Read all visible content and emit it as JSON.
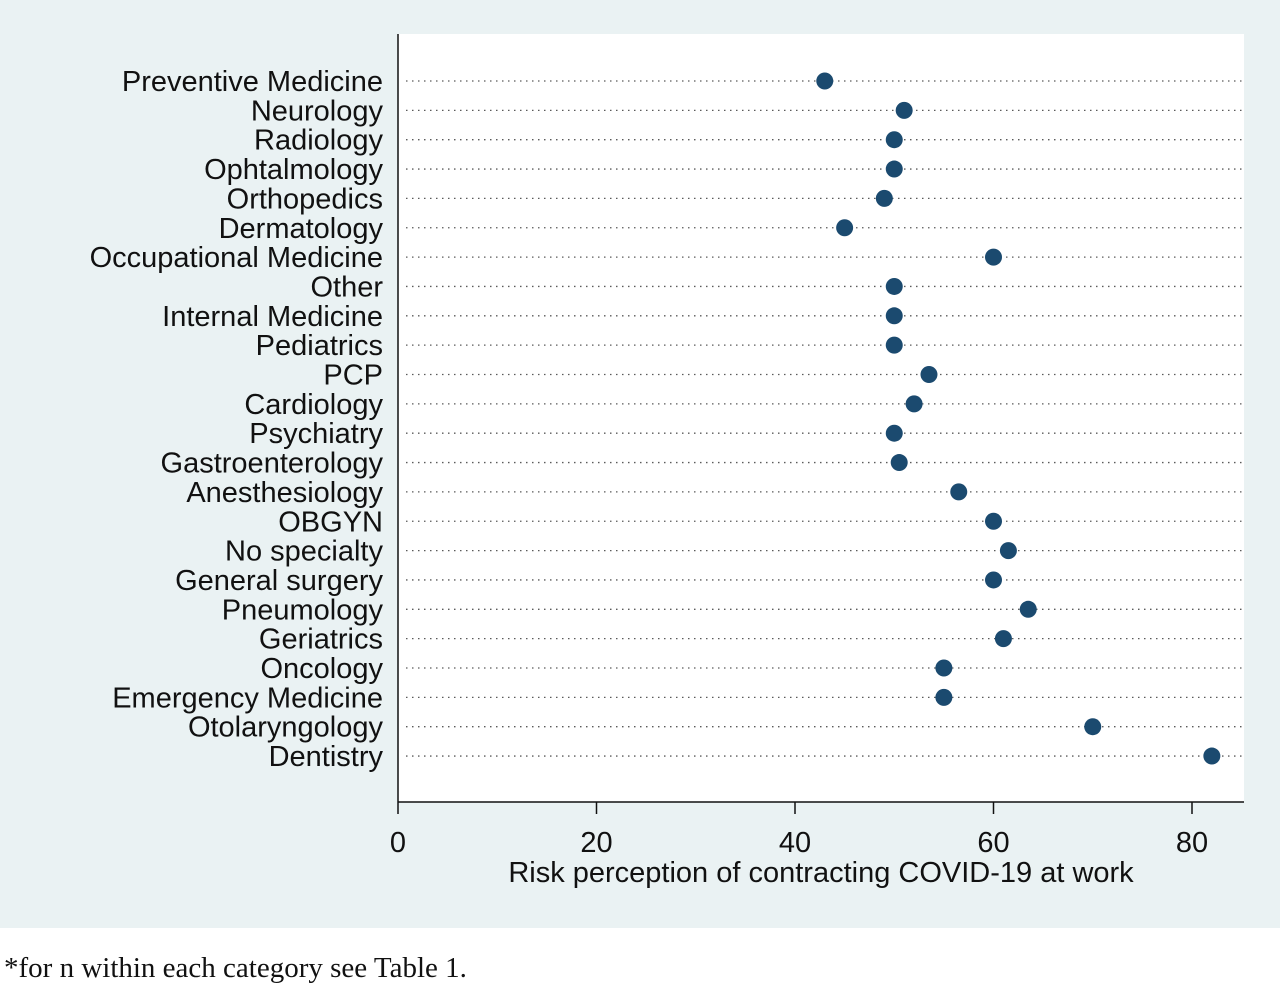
{
  "chart_data": {
    "type": "scatter",
    "orientation": "horizontal-dot-plot",
    "categories": [
      "Preventive Medicine",
      "Neurology",
      "Radiology",
      "Ophtalmology",
      "Orthopedics",
      "Dermatology",
      "Occupational Medicine",
      "Other",
      "Internal Medicine",
      "Pediatrics",
      "PCP",
      "Cardiology",
      "Psychiatry",
      "Gastroenterology",
      "Anesthesiology",
      "OBGYN",
      "No specialty",
      "General surgery",
      "Pneumology",
      "Geriatrics",
      "Oncology",
      "Emergency Medicine",
      "Otolaryngology",
      "Dentistry"
    ],
    "values": [
      43,
      51,
      50,
      50,
      49,
      45,
      60,
      50,
      50,
      50,
      53.5,
      52,
      50,
      50.5,
      56.5,
      60,
      61.5,
      60,
      63.5,
      61,
      55,
      55,
      70,
      82
    ],
    "xlabel": "Risk perception of contracting COVID-19 at work",
    "xlim": [
      0,
      85
    ],
    "xticks": [
      0,
      20,
      40,
      60,
      80
    ],
    "grid": "dotted horizontal guide lines",
    "marker_color": "#1b4a6f",
    "background_color": "#eaf2f3",
    "plot_color": "#ffffff"
  },
  "footnote": "*for n within each category see Table 1."
}
